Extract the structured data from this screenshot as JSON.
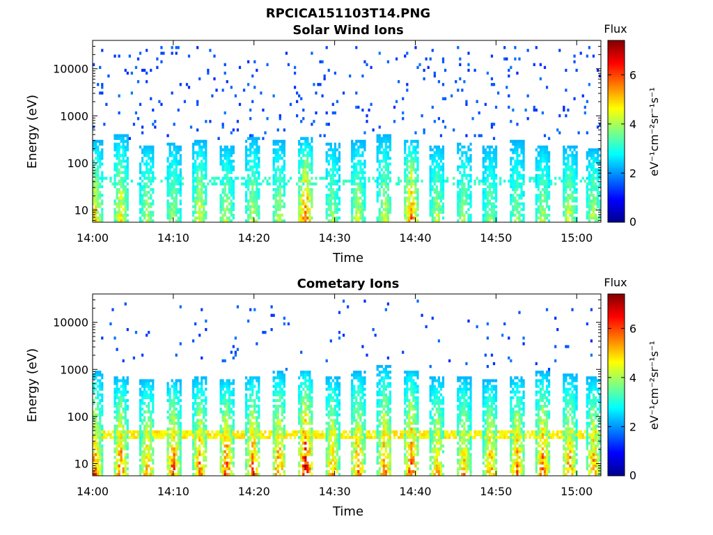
{
  "figure_title": "RPCICA151103T14.PNG",
  "colormap": [
    "#00008f",
    "#0000ff",
    "#0080ff",
    "#00ffff",
    "#80ff80",
    "#ffff00",
    "#ff8000",
    "#ff0000",
    "#800000"
  ],
  "chart_data": [
    {
      "type": "heatmap",
      "title": "Solar Wind Ions",
      "xlabel": "Time",
      "ylabel": "Energy (eV)",
      "x_ticks": [
        "14:00",
        "14:10",
        "14:20",
        "14:30",
        "14:40",
        "14:50",
        "15:00"
      ],
      "x_tick_minutes": [
        0,
        10,
        20,
        30,
        40,
        50,
        60
      ],
      "xlim_minutes": [
        0,
        63
      ],
      "y_scale": "log",
      "y_ticks": [
        "10",
        "100",
        "1000",
        "10000"
      ],
      "y_tick_values": [
        10,
        100,
        1000,
        10000
      ],
      "ylim": [
        5.5,
        40000
      ],
      "colorbar": {
        "title": "Flux",
        "label": "eV⁻¹cm⁻²sr⁻¹s⁻¹",
        "ticks": [
          "0",
          "2",
          "4",
          "6"
        ],
        "tick_values": [
          0,
          2,
          4,
          6
        ],
        "range": [
          0,
          7.4
        ]
      },
      "pulse_minutes": [
        0.3,
        3.5,
        6.8,
        10.0,
        13.3,
        16.6,
        19.9,
        23.1,
        26.4,
        29.7,
        32.9,
        36.2,
        39.5,
        42.7,
        46.0,
        49.3,
        52.6,
        55.8,
        59.1,
        62.1
      ],
      "pulse_top_energy": [
        300,
        400,
        250,
        280,
        300,
        250,
        350,
        300,
        350,
        280,
        300,
        400,
        330,
        250,
        280,
        250,
        300,
        250,
        230,
        200
      ],
      "pulse_peak_flux": [
        5.2,
        5.0,
        4.4,
        4.2,
        4.8,
        4.4,
        4.5,
        4.4,
        6.4,
        4.2,
        4.5,
        4.6,
        6.0,
        4.4,
        4.2,
        4.0,
        4.0,
        4.3,
        4.6,
        4.5
      ],
      "background_flux": [
        1.2,
        1.8
      ],
      "background_energy": [
        300,
        30000
      ]
    },
    {
      "type": "heatmap",
      "title": "Cometary Ions",
      "xlabel": "Time",
      "ylabel": "Energy (eV)",
      "x_ticks": [
        "14:00",
        "14:10",
        "14:20",
        "14:30",
        "14:40",
        "14:50",
        "15:00"
      ],
      "x_tick_minutes": [
        0,
        10,
        20,
        30,
        40,
        50,
        60
      ],
      "xlim_minutes": [
        0,
        63
      ],
      "y_scale": "log",
      "y_ticks": [
        "10",
        "100",
        "1000",
        "10000"
      ],
      "y_tick_values": [
        10,
        100,
        1000,
        10000
      ],
      "ylim": [
        5.5,
        40000
      ],
      "colorbar": {
        "title": "Flux",
        "label": "eV⁻¹cm⁻²sr⁻¹s⁻¹",
        "ticks": [
          "0",
          "2",
          "4",
          "6"
        ],
        "tick_values": [
          0,
          2,
          4,
          6
        ],
        "range": [
          0,
          7.4
        ]
      },
      "pulse_minutes": [
        0.3,
        3.5,
        6.8,
        10.0,
        13.3,
        16.6,
        19.9,
        23.1,
        26.4,
        29.7,
        32.9,
        36.2,
        39.5,
        42.7,
        46.0,
        49.3,
        52.6,
        55.8,
        59.1,
        62.1
      ],
      "pulse_top_energy": [
        900,
        700,
        650,
        600,
        700,
        650,
        750,
        900,
        1000,
        700,
        900,
        1200,
        1000,
        700,
        700,
        600,
        700,
        900,
        800,
        700
      ],
      "pulse_peak_flux": [
        6.0,
        6.2,
        5.8,
        6.3,
        6.0,
        6.4,
        6.2,
        6.0,
        7.2,
        5.8,
        6.0,
        6.0,
        6.4,
        5.6,
        5.6,
        5.8,
        6.0,
        6.2,
        5.8,
        5.8
      ],
      "background_flux": [
        1.2,
        1.8
      ],
      "background_energy": [
        1000,
        30000
      ]
    }
  ]
}
